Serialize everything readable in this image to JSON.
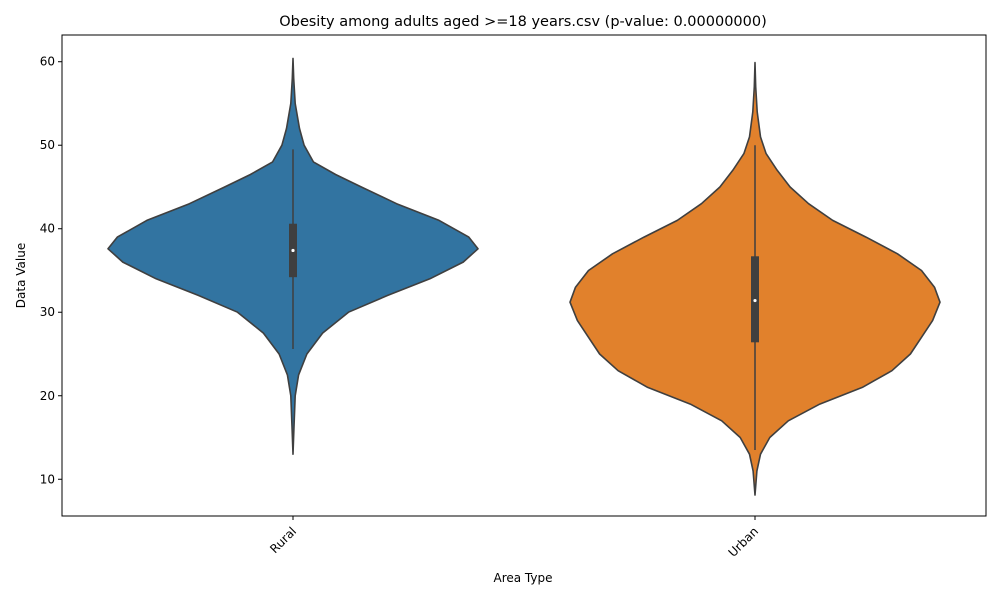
{
  "chart_data": {
    "type": "violin",
    "title": "Obesity among adults aged >=18 years.csv (p-value: 0.00000000)",
    "xlabel": "Area Type",
    "ylabel": "Data Value",
    "ylim": [
      5.6,
      63.2
    ],
    "yticks": [
      10,
      20,
      30,
      40,
      50,
      60
    ],
    "categories": [
      "Rural",
      "Urban"
    ],
    "colors": [
      "#3274a1",
      "#e1812c"
    ],
    "outline_color": "#3f3f3f",
    "x_tick_rotation": 45,
    "grid": false,
    "violins": [
      {
        "name": "Rural",
        "color": "#3274a1",
        "min": 13.0,
        "max": 60.4,
        "q1": 34.2,
        "median": 37.4,
        "q3": 40.6,
        "whisker_low": 25.6,
        "whisker_high": 49.5,
        "profile": [
          [
            13.0,
            0.0
          ],
          [
            16.0,
            0.005
          ],
          [
            20.0,
            0.012
          ],
          [
            22.5,
            0.03
          ],
          [
            25.0,
            0.075
          ],
          [
            27.5,
            0.16
          ],
          [
            30.0,
            0.3
          ],
          [
            32.0,
            0.51
          ],
          [
            34.0,
            0.74
          ],
          [
            36.0,
            0.92
          ],
          [
            37.6,
            1.0
          ],
          [
            39.0,
            0.95
          ],
          [
            41.0,
            0.79
          ],
          [
            43.0,
            0.56
          ],
          [
            45.0,
            0.37
          ],
          [
            46.5,
            0.23
          ],
          [
            48.0,
            0.11
          ],
          [
            50.0,
            0.06
          ],
          [
            52.0,
            0.035
          ],
          [
            55.0,
            0.012
          ],
          [
            58.0,
            0.004
          ],
          [
            60.4,
            0.0
          ]
        ]
      },
      {
        "name": "Urban",
        "color": "#e1812c",
        "min": 8.1,
        "max": 59.9,
        "q1": 26.4,
        "median": 31.4,
        "q3": 36.7,
        "whisker_low": 13.5,
        "whisker_high": 50.0,
        "profile": [
          [
            8.1,
            0.0
          ],
          [
            11.0,
            0.01
          ],
          [
            13.0,
            0.03
          ],
          [
            15.0,
            0.08
          ],
          [
            17.0,
            0.18
          ],
          [
            19.0,
            0.35
          ],
          [
            21.0,
            0.58
          ],
          [
            23.0,
            0.74
          ],
          [
            25.0,
            0.84
          ],
          [
            27.0,
            0.9
          ],
          [
            29.0,
            0.96
          ],
          [
            31.2,
            1.0
          ],
          [
            33.0,
            0.97
          ],
          [
            35.0,
            0.9
          ],
          [
            37.0,
            0.77
          ],
          [
            39.0,
            0.6
          ],
          [
            41.0,
            0.42
          ],
          [
            43.0,
            0.29
          ],
          [
            45.0,
            0.19
          ],
          [
            47.0,
            0.12
          ],
          [
            49.0,
            0.06
          ],
          [
            51.0,
            0.03
          ],
          [
            54.0,
            0.012
          ],
          [
            57.0,
            0.004
          ],
          [
            59.9,
            0.0
          ]
        ]
      }
    ]
  }
}
